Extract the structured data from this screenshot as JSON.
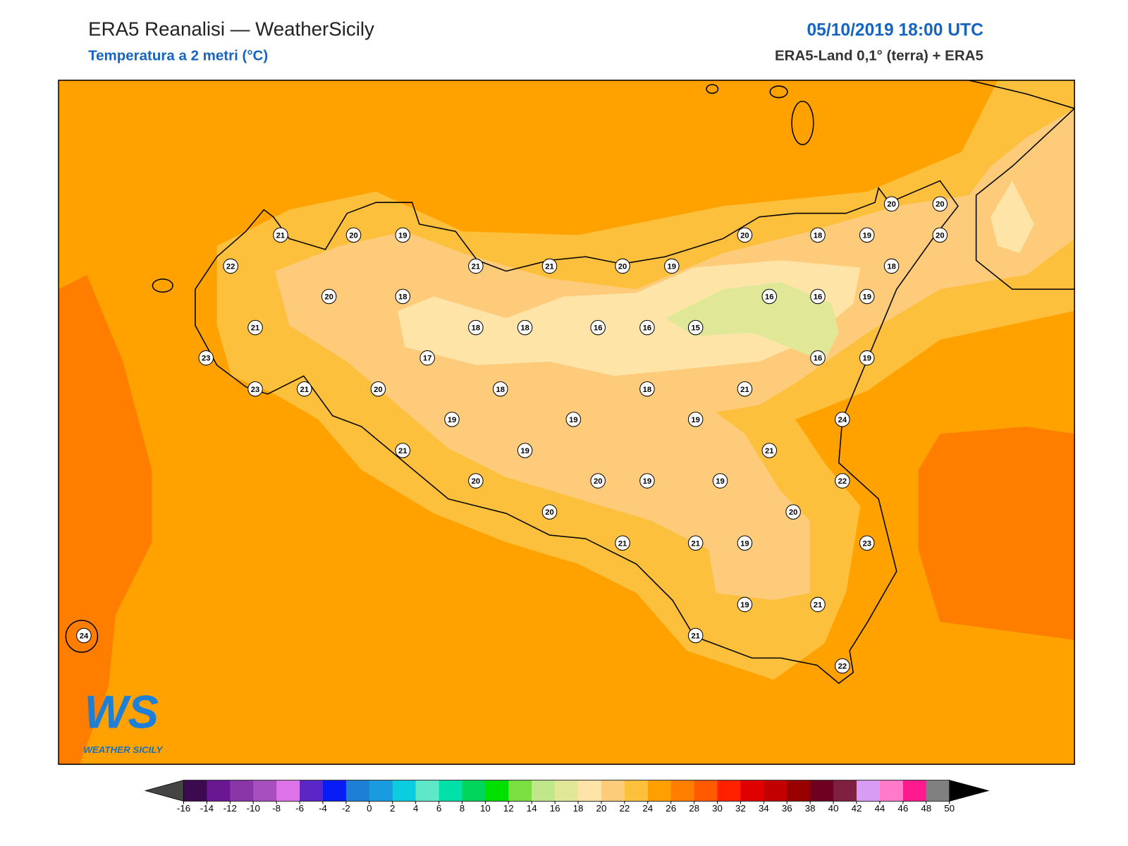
{
  "header": {
    "title": "ERA5 Reanalisi — WeatherSicily",
    "subtitle": "Temperatura a 2 metri (°C)",
    "datetime": "05/10/2019 18:00 UTC",
    "source": "ERA5-Land 0,1° (terra) + ERA5"
  },
  "stations": [
    21,
    20,
    19,
    22,
    21,
    21,
    20,
    19,
    20,
    18,
    21,
    18,
    18,
    16,
    16,
    15,
    23,
    17,
    23,
    21,
    20,
    18,
    18,
    21,
    19,
    19,
    19,
    21,
    19,
    20,
    20,
    19,
    19,
    20,
    21,
    21,
    19,
    21,
    19,
    20,
    20,
    20,
    18,
    19,
    20,
    18,
    16,
    16,
    19,
    16,
    19,
    24,
    21,
    22,
    20,
    23,
    21,
    22,
    24
  ],
  "colorbar": {
    "ticks": [
      -16,
      -14,
      -12,
      -10,
      -8,
      -6,
      -4,
      -2,
      0,
      2,
      4,
      6,
      8,
      10,
      12,
      14,
      16,
      18,
      20,
      22,
      24,
      26,
      28,
      30,
      32,
      34,
      36,
      38,
      40,
      42,
      44,
      46,
      48,
      50
    ],
    "colors": [
      "#3b0a4f",
      "#6a1791",
      "#8a35a8",
      "#a64fbd",
      "#de72e8",
      "#5a26c6",
      "#0a1cf5",
      "#1e7fd6",
      "#1a9be0",
      "#0ccce0",
      "#5ee8c8",
      "#00e0a8",
      "#00d45a",
      "#00e000",
      "#7ae040",
      "#c0e88a",
      "#e0e898",
      "#ffe4a8",
      "#fdcb7a",
      "#fdc03c",
      "#ffa000",
      "#ff7e00",
      "#ff5a00",
      "#ff2000",
      "#e00000",
      "#c20000",
      "#980000",
      "#6e0020",
      "#802040",
      "#d89cf5",
      "#ff7ac8",
      "#ff1a90",
      "#808080"
    ],
    "under_color": "#444444",
    "over_color": "#000000"
  },
  "logo": {
    "mark": "WS",
    "name": "WEATHER SICILY"
  }
}
